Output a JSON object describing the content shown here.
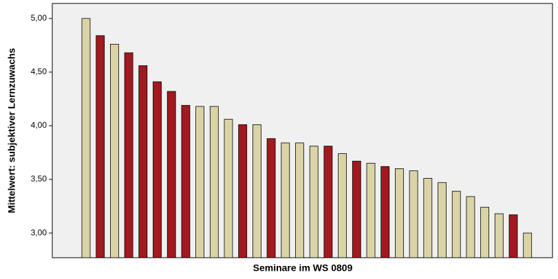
{
  "chart_data": {
    "type": "bar",
    "x_label": "Seminare im WS 0809",
    "y_label": "Mittelwert: subjektiver Lernzuwachs",
    "categories": [
      null,
      null,
      null,
      null,
      null,
      null,
      null,
      null,
      null,
      null,
      null,
      null,
      null,
      null,
      null,
      null,
      null,
      null,
      null,
      null,
      null,
      null,
      null,
      null,
      null,
      null,
      null,
      null,
      null,
      null,
      null,
      null
    ],
    "values": [
      5.0,
      4.84,
      4.76,
      4.68,
      4.56,
      4.41,
      4.32,
      4.19,
      4.18,
      4.18,
      4.06,
      4.01,
      4.01,
      3.88,
      3.84,
      3.84,
      3.81,
      3.81,
      3.74,
      3.67,
      3.65,
      3.62,
      3.6,
      3.58,
      3.51,
      3.47,
      3.39,
      3.34,
      3.24,
      3.18,
      3.17,
      3.0
    ],
    "colors": [
      "#d9d3a6",
      "#a2191f",
      "#d9d3a6",
      "#a2191f",
      "#a2191f",
      "#a2191f",
      "#a2191f",
      "#a2191f",
      "#d9d3a6",
      "#d9d3a6",
      "#d9d3a6",
      "#a2191f",
      "#d9d3a6",
      "#a2191f",
      "#d9d3a6",
      "#d9d3a6",
      "#d9d3a6",
      "#a2191f",
      "#d9d3a6",
      "#a2191f",
      "#d9d3a6",
      "#a2191f",
      "#d9d3a6",
      "#d9d3a6",
      "#d9d3a6",
      "#d9d3a6",
      "#d9d3a6",
      "#d9d3a6",
      "#d9d3a6",
      "#d9d3a6",
      "#a2191f",
      "#d9d3a6"
    ],
    "ylim": [
      2.77,
      5.14
    ],
    "yticks": [
      {
        "value": 3,
        "label": "3,00"
      },
      {
        "value": 3.5,
        "label": "3,50"
      },
      {
        "value": 4,
        "label": "4,00"
      },
      {
        "value": 4.5,
        "label": "4,50"
      },
      {
        "value": 5,
        "label": "5,00"
      }
    ]
  }
}
